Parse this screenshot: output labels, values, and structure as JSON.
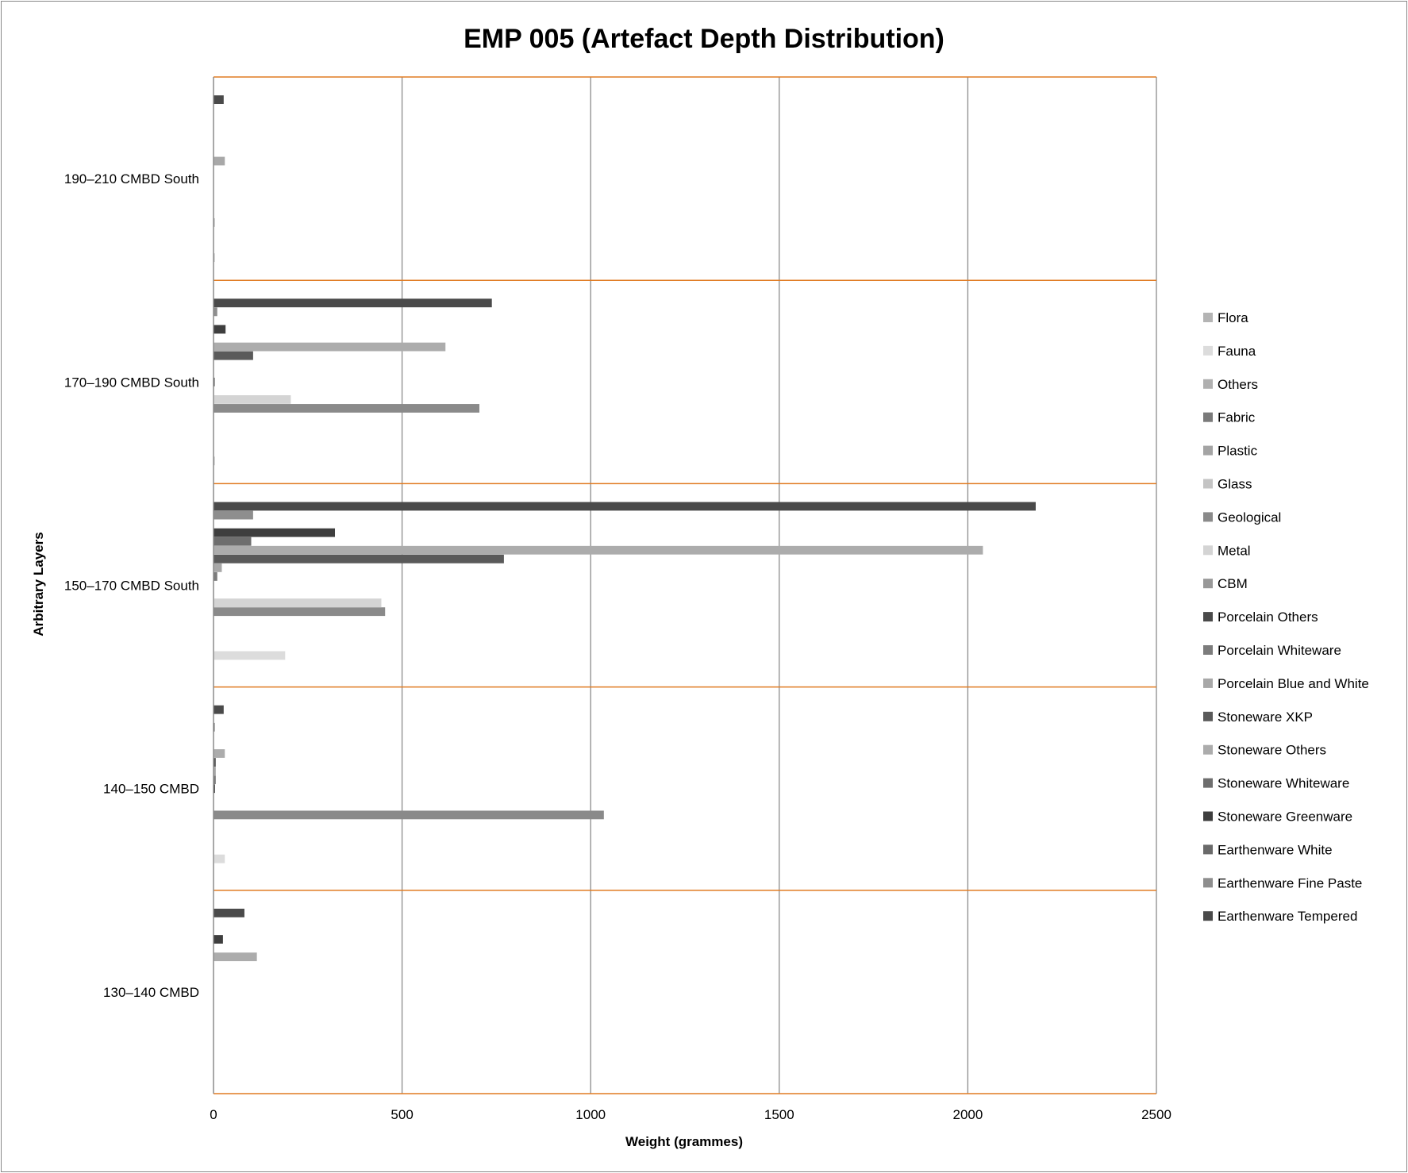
{
  "chart_data": {
    "type": "bar",
    "orientation": "horizontal",
    "title": "EMP 005 (Artefact Depth Distribution)",
    "xlabel": "Weight (grammes)",
    "ylabel": "Arbitrary Layers",
    "xlim": [
      0,
      2500
    ],
    "xticks": [
      0,
      500,
      1000,
      1500,
      2000,
      2500
    ],
    "grid": true,
    "legend_position": "right",
    "categories": [
      "190–210 CMBD South",
      "170–190 CMBD South",
      "150–170 CMBD South",
      "140–150 CMBD",
      "130–140 CMBD"
    ],
    "series": [
      {
        "name": "Flora",
        "color": "#b4b4b4",
        "values": [
          2,
          2,
          0,
          0,
          0
        ]
      },
      {
        "name": "Fauna",
        "color": "#dcdcdc",
        "values": [
          0,
          0,
          190,
          30,
          0
        ]
      },
      {
        "name": "Others",
        "color": "#b0b0b0",
        "values": [
          0,
          0,
          0,
          0,
          0
        ]
      },
      {
        "name": "Fabric",
        "color": "#7a7a7a",
        "values": [
          0,
          0,
          0,
          0,
          0
        ]
      },
      {
        "name": "Plastic",
        "color": "#a4a4a4",
        "values": [
          2,
          0,
          0,
          0,
          0
        ]
      },
      {
        "name": "Glass",
        "color": "#c4c4c4",
        "values": [
          0,
          0,
          0,
          0,
          0
        ]
      },
      {
        "name": "Geological",
        "color": "#8a8a8a",
        "values": [
          0,
          705,
          455,
          1035,
          0
        ]
      },
      {
        "name": "Metal",
        "color": "#d4d4d4",
        "values": [
          0,
          205,
          445,
          0,
          0
        ]
      },
      {
        "name": "CBM",
        "color": "#989898",
        "values": [
          0,
          0,
          0,
          0,
          0
        ]
      },
      {
        "name": "Porcelain Others",
        "color": "#4a4a4a",
        "values": [
          0,
          2,
          0,
          4,
          0
        ]
      },
      {
        "name": "Porcelain Whiteware",
        "color": "#7c7c7c",
        "values": [
          0,
          0,
          10,
          6,
          0
        ]
      },
      {
        "name": "Porcelain Blue and White",
        "color": "#a8a8a8",
        "values": [
          30,
          0,
          22,
          6,
          0
        ]
      },
      {
        "name": "Stoneware XKP",
        "color": "#5a5a5a",
        "values": [
          0,
          105,
          770,
          6,
          0
        ]
      },
      {
        "name": "Stoneware Others",
        "color": "#acacac",
        "values": [
          0,
          615,
          2040,
          30,
          115
        ]
      },
      {
        "name": "Stoneware Whiteware",
        "color": "#6e6e6e",
        "values": [
          0,
          0,
          100,
          0,
          0
        ]
      },
      {
        "name": "Stoneware Greenware",
        "color": "#3e3e3e",
        "values": [
          0,
          32,
          322,
          0,
          25
        ]
      },
      {
        "name": "Earthenware White",
        "color": "#6a6a6a",
        "values": [
          0,
          0,
          0,
          2,
          0
        ]
      },
      {
        "name": "Earthenware Fine Paste",
        "color": "#8e8e8e",
        "values": [
          0,
          10,
          105,
          0,
          0
        ]
      },
      {
        "name": "Earthenware Tempered",
        "color": "#4a4a4a",
        "values": [
          27,
          738,
          2180,
          27,
          82
        ]
      }
    ]
  }
}
